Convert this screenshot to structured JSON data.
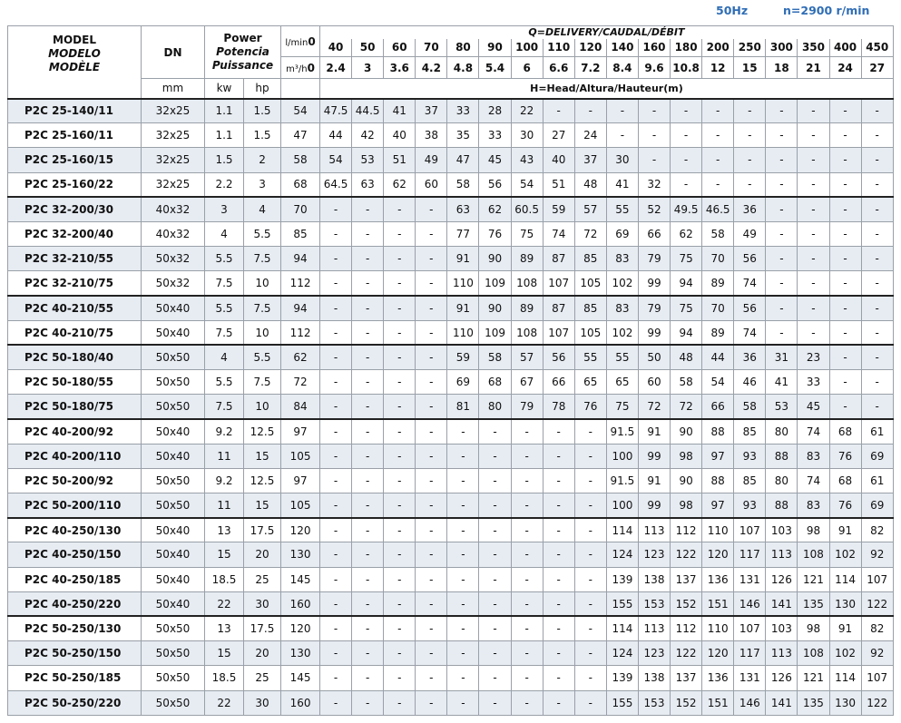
{
  "header_note": {
    "frequency": "50Hz",
    "speed": "n=2900 r/min"
  },
  "table": {
    "headers": {
      "model": [
        "MODEL",
        "MODELO",
        "MODÈLE"
      ],
      "dn": "DN",
      "dn_unit": "mm",
      "power": [
        "Power",
        "Potencia",
        "Puissance"
      ],
      "power_units": [
        "kw",
        "hp"
      ],
      "delivery": "Q=DELIVERY/CAUDAL/DÉBIT",
      "lmin_unit": "l/min",
      "m3h_unit": "m³/h",
      "lmin": [
        "0",
        "40",
        "50",
        "60",
        "70",
        "80",
        "90",
        "100",
        "110",
        "120",
        "140",
        "160",
        "180",
        "200",
        "250",
        "300",
        "350",
        "400",
        "450"
      ],
      "m3h": [
        "0",
        "2.4",
        "3",
        "3.6",
        "4.2",
        "4.8",
        "5.4",
        "6",
        "6.6",
        "7.2",
        "8.4",
        "9.6",
        "10.8",
        "12",
        "15",
        "18",
        "21",
        "24",
        "27"
      ],
      "head": "H=Head/Altura/Hauteur(m)"
    },
    "rows": [
      [
        "P2C 25-140/11",
        "32x25",
        "1.1",
        "1.5",
        "54",
        "47.5",
        "44.5",
        "41",
        "37",
        "33",
        "28",
        "22",
        "-",
        "-",
        "-",
        "-",
        "-",
        "-",
        "-",
        "-",
        "-",
        "-",
        "-"
      ],
      [
        "P2C 25-160/11",
        "32x25",
        "1.1",
        "1.5",
        "47",
        "44",
        "42",
        "40",
        "38",
        "35",
        "33",
        "30",
        "27",
        "24",
        "-",
        "-",
        "-",
        "-",
        "-",
        "-",
        "-",
        "-",
        "-"
      ],
      [
        "P2C 25-160/15",
        "32x25",
        "1.5",
        "2",
        "58",
        "54",
        "53",
        "51",
        "49",
        "47",
        "45",
        "43",
        "40",
        "37",
        "30",
        "-",
        "-",
        "-",
        "-",
        "-",
        "-",
        "-",
        "-"
      ],
      [
        "P2C 25-160/22",
        "32x25",
        "2.2",
        "3",
        "68",
        "64.5",
        "63",
        "62",
        "60",
        "58",
        "56",
        "54",
        "51",
        "48",
        "41",
        "32",
        "-",
        "-",
        "-",
        "-",
        "-",
        "-",
        "-"
      ],
      [
        "P2C 32-200/30",
        "40x32",
        "3",
        "4",
        "70",
        "-",
        "-",
        "-",
        "-",
        "63",
        "62",
        "60.5",
        "59",
        "57",
        "55",
        "52",
        "49.5",
        "46.5",
        "36",
        "-",
        "-",
        "-",
        "-"
      ],
      [
        "P2C 32-200/40",
        "40x32",
        "4",
        "5.5",
        "85",
        "-",
        "-",
        "-",
        "-",
        "77",
        "76",
        "75",
        "74",
        "72",
        "69",
        "66",
        "62",
        "58",
        "49",
        "-",
        "-",
        "-",
        "-"
      ],
      [
        "P2C 32-210/55",
        "50x32",
        "5.5",
        "7.5",
        "94",
        "-",
        "-",
        "-",
        "-",
        "91",
        "90",
        "89",
        "87",
        "85",
        "83",
        "79",
        "75",
        "70",
        "56",
        "-",
        "-",
        "-",
        "-"
      ],
      [
        "P2C 32-210/75",
        "50x32",
        "7.5",
        "10",
        "112",
        "-",
        "-",
        "-",
        "-",
        "110",
        "109",
        "108",
        "107",
        "105",
        "102",
        "99",
        "94",
        "89",
        "74",
        "-",
        "-",
        "-",
        "-"
      ],
      [
        "P2C 40-210/55",
        "50x40",
        "5.5",
        "7.5",
        "94",
        "-",
        "-",
        "-",
        "-",
        "91",
        "90",
        "89",
        "87",
        "85",
        "83",
        "79",
        "75",
        "70",
        "56",
        "-",
        "-",
        "-",
        "-"
      ],
      [
        "P2C 40-210/75",
        "50x40",
        "7.5",
        "10",
        "112",
        "-",
        "-",
        "-",
        "-",
        "110",
        "109",
        "108",
        "107",
        "105",
        "102",
        "99",
        "94",
        "89",
        "74",
        "-",
        "-",
        "-",
        "-"
      ],
      [
        "P2C 50-180/40",
        "50x50",
        "4",
        "5.5",
        "62",
        "-",
        "-",
        "-",
        "-",
        "59",
        "58",
        "57",
        "56",
        "55",
        "55",
        "50",
        "48",
        "44",
        "36",
        "31",
        "23",
        "-",
        "-"
      ],
      [
        "P2C 50-180/55",
        "50x50",
        "5.5",
        "7.5",
        "72",
        "-",
        "-",
        "-",
        "-",
        "69",
        "68",
        "67",
        "66",
        "65",
        "65",
        "60",
        "58",
        "54",
        "46",
        "41",
        "33",
        "-",
        "-"
      ],
      [
        "P2C 50-180/75",
        "50x50",
        "7.5",
        "10",
        "84",
        "-",
        "-",
        "-",
        "-",
        "81",
        "80",
        "79",
        "78",
        "76",
        "75",
        "72",
        "72",
        "66",
        "58",
        "53",
        "45",
        "-",
        "-"
      ],
      [
        "P2C 40-200/92",
        "50x40",
        "9.2",
        "12.5",
        "97",
        "-",
        "-",
        "-",
        "-",
        "-",
        "-",
        "-",
        "-",
        "-",
        "91.5",
        "91",
        "90",
        "88",
        "85",
        "80",
        "74",
        "68",
        "61"
      ],
      [
        "P2C 40-200/110",
        "50x40",
        "11",
        "15",
        "105",
        "-",
        "-",
        "-",
        "-",
        "-",
        "-",
        "-",
        "-",
        "-",
        "100",
        "99",
        "98",
        "97",
        "93",
        "88",
        "83",
        "76",
        "69"
      ],
      [
        "P2C 50-200/92",
        "50x50",
        "9.2",
        "12.5",
        "97",
        "-",
        "-",
        "-",
        "-",
        "-",
        "-",
        "-",
        "-",
        "-",
        "91.5",
        "91",
        "90",
        "88",
        "85",
        "80",
        "74",
        "68",
        "61"
      ],
      [
        "P2C 50-200/110",
        "50x50",
        "11",
        "15",
        "105",
        "-",
        "-",
        "-",
        "-",
        "-",
        "-",
        "-",
        "-",
        "-",
        "100",
        "99",
        "98",
        "97",
        "93",
        "88",
        "83",
        "76",
        "69"
      ],
      [
        "P2C 40-250/130",
        "50x40",
        "13",
        "17.5",
        "120",
        "-",
        "-",
        "-",
        "-",
        "-",
        "-",
        "-",
        "-",
        "-",
        "114",
        "113",
        "112",
        "110",
        "107",
        "103",
        "98",
        "91",
        "82"
      ],
      [
        "P2C 40-250/150",
        "50x40",
        "15",
        "20",
        "130",
        "-",
        "-",
        "-",
        "-",
        "-",
        "-",
        "-",
        "-",
        "-",
        "124",
        "123",
        "122",
        "120",
        "117",
        "113",
        "108",
        "102",
        "92"
      ],
      [
        "P2C 40-250/185",
        "50x40",
        "18.5",
        "25",
        "145",
        "-",
        "-",
        "-",
        "-",
        "-",
        "-",
        "-",
        "-",
        "-",
        "139",
        "138",
        "137",
        "136",
        "131",
        "126",
        "121",
        "114",
        "107"
      ],
      [
        "P2C 40-250/220",
        "50x40",
        "22",
        "30",
        "160",
        "-",
        "-",
        "-",
        "-",
        "-",
        "-",
        "-",
        "-",
        "-",
        "155",
        "153",
        "152",
        "151",
        "146",
        "141",
        "135",
        "130",
        "122"
      ],
      [
        "P2C 50-250/130",
        "50x50",
        "13",
        "17.5",
        "120",
        "-",
        "-",
        "-",
        "-",
        "-",
        "-",
        "-",
        "-",
        "-",
        "114",
        "113",
        "112",
        "110",
        "107",
        "103",
        "98",
        "91",
        "82"
      ],
      [
        "P2C 50-250/150",
        "50x50",
        "15",
        "20",
        "130",
        "-",
        "-",
        "-",
        "-",
        "-",
        "-",
        "-",
        "-",
        "-",
        "124",
        "123",
        "122",
        "120",
        "117",
        "113",
        "108",
        "102",
        "92"
      ],
      [
        "P2C 50-250/185",
        "50x50",
        "18.5",
        "25",
        "145",
        "-",
        "-",
        "-",
        "-",
        "-",
        "-",
        "-",
        "-",
        "-",
        "139",
        "138",
        "137",
        "136",
        "131",
        "126",
        "121",
        "114",
        "107"
      ],
      [
        "P2C 50-250/220",
        "50x50",
        "22",
        "30",
        "160",
        "-",
        "-",
        "-",
        "-",
        "-",
        "-",
        "-",
        "-",
        "-",
        "155",
        "153",
        "152",
        "151",
        "146",
        "141",
        "135",
        "130",
        "122"
      ]
    ]
  }
}
